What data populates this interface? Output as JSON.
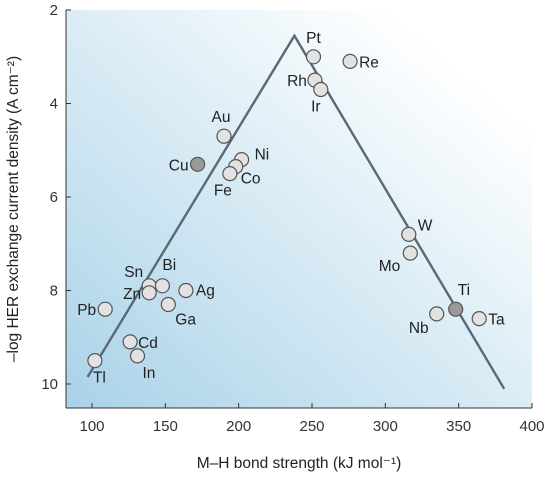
{
  "chart_data": {
    "type": "scatter",
    "title": "",
    "xlabel": "M–H bond strength (kJ mol⁻¹)",
    "ylabel": "–log HER exchange current density (A cm⁻²)",
    "xlim": [
      80,
      400
    ],
    "ylim": [
      2,
      10.6
    ],
    "y_inverted": true,
    "xticks": [
      "100",
      "150",
      "200",
      "250",
      "300",
      "350",
      "400"
    ],
    "yticks": [
      "2",
      "4",
      "6",
      "8",
      "10"
    ],
    "grid": false,
    "legend": "none",
    "background_gradient": [
      "#a9d2e8",
      "#ffffff"
    ],
    "colors": {
      "point_fill_light": "#e2e2e2",
      "point_fill_dark": "#9a9a9a",
      "point_stroke": "#555555",
      "volcano_line": "#5a6a75"
    },
    "volcano_line": [
      {
        "x": 97,
        "y": 9.85
      },
      {
        "x": 238,
        "y": 2.55
      },
      {
        "x": 381,
        "y": 10.1
      }
    ],
    "points": [
      {
        "label": "Pt",
        "x": 251,
        "y": 3.0,
        "shade": "light"
      },
      {
        "label": "Re",
        "x": 276,
        "y": 3.1,
        "shade": "light"
      },
      {
        "label": "Rh",
        "x": 252,
        "y": 3.5,
        "shade": "light"
      },
      {
        "label": "Ir",
        "x": 256,
        "y": 3.7,
        "shade": "light"
      },
      {
        "label": "Au",
        "x": 190,
        "y": 4.7,
        "shade": "light"
      },
      {
        "label": "Ni",
        "x": 202,
        "y": 5.2,
        "shade": "light"
      },
      {
        "label": "Cu",
        "x": 172,
        "y": 5.3,
        "shade": "dark"
      },
      {
        "label": "Co",
        "x": 198,
        "y": 5.35,
        "shade": "light"
      },
      {
        "label": "Fe",
        "x": 194,
        "y": 5.5,
        "shade": "light"
      },
      {
        "label": "W",
        "x": 316,
        "y": 6.8,
        "shade": "light"
      },
      {
        "label": "Mo",
        "x": 317,
        "y": 7.2,
        "shade": "light"
      },
      {
        "label": "Sn",
        "x": 139,
        "y": 7.9,
        "shade": "light"
      },
      {
        "label": "Bi",
        "x": 148,
        "y": 7.9,
        "shade": "light"
      },
      {
        "label": "Zn",
        "x": 139,
        "y": 8.05,
        "shade": "light"
      },
      {
        "label": "Ag",
        "x": 164,
        "y": 8.0,
        "shade": "light"
      },
      {
        "label": "Ga",
        "x": 152,
        "y": 8.3,
        "shade": "light"
      },
      {
        "label": "Pb",
        "x": 109,
        "y": 8.4,
        "shade": "light"
      },
      {
        "label": "Ti",
        "x": 348,
        "y": 8.4,
        "shade": "dark"
      },
      {
        "label": "Nb",
        "x": 335,
        "y": 8.5,
        "shade": "light"
      },
      {
        "label": "Ta",
        "x": 364,
        "y": 8.6,
        "shade": "light"
      },
      {
        "label": "Cd",
        "x": 126,
        "y": 9.1,
        "shade": "light"
      },
      {
        "label": "In",
        "x": 131,
        "y": 9.4,
        "shade": "light"
      },
      {
        "label": "Tl",
        "x": 102,
        "y": 9.5,
        "shade": "light"
      }
    ]
  }
}
